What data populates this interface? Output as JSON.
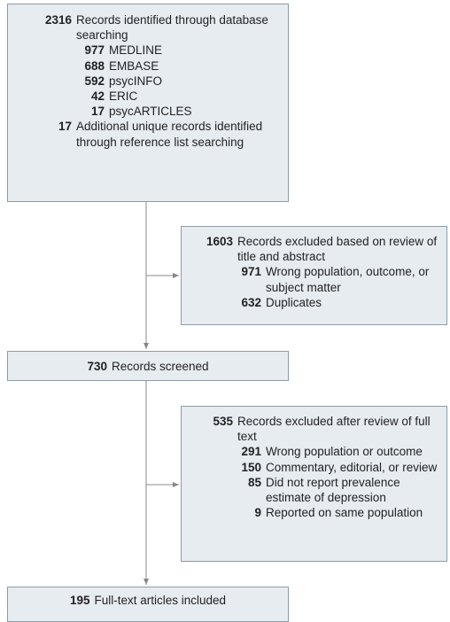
{
  "nodes": [
    {
      "items": [
        {
          "count": 2316,
          "label": "Records identified through database searching",
          "children": [
            {
              "count": 977,
              "label": "MEDLINE"
            },
            {
              "count": 688,
              "label": "EMBASE"
            },
            {
              "count": 592,
              "label": "psycINFO"
            },
            {
              "count": 42,
              "label": "ERIC"
            },
            {
              "count": 17,
              "label": "psycARTICLES"
            }
          ]
        },
        {
          "count": 17,
          "label": "Additional unique records identified through reference list searching"
        }
      ]
    },
    {
      "items": [
        {
          "count": 1603,
          "label": "Records excluded based on review of title and abstract",
          "children": [
            {
              "count": 971,
              "label": "Wrong population, outcome, or subject matter"
            },
            {
              "count": 632,
              "label": "Duplicates"
            }
          ]
        }
      ]
    },
    {
      "items": [
        {
          "count": 730,
          "label": "Records screened"
        }
      ]
    },
    {
      "items": [
        {
          "count": 535,
          "label": "Records excluded after review of full text",
          "children": [
            {
              "count": 291,
              "label": "Wrong population or outcome"
            },
            {
              "count": 150,
              "label": "Commentary, editorial, or review"
            },
            {
              "count": 85,
              "label": "Did not report prevalence estimate of depression"
            },
            {
              "count": 9,
              "label": "Reported on same population"
            }
          ]
        }
      ]
    },
    {
      "items": [
        {
          "count": 195,
          "label": "Full-text articles included"
        }
      ]
    }
  ]
}
